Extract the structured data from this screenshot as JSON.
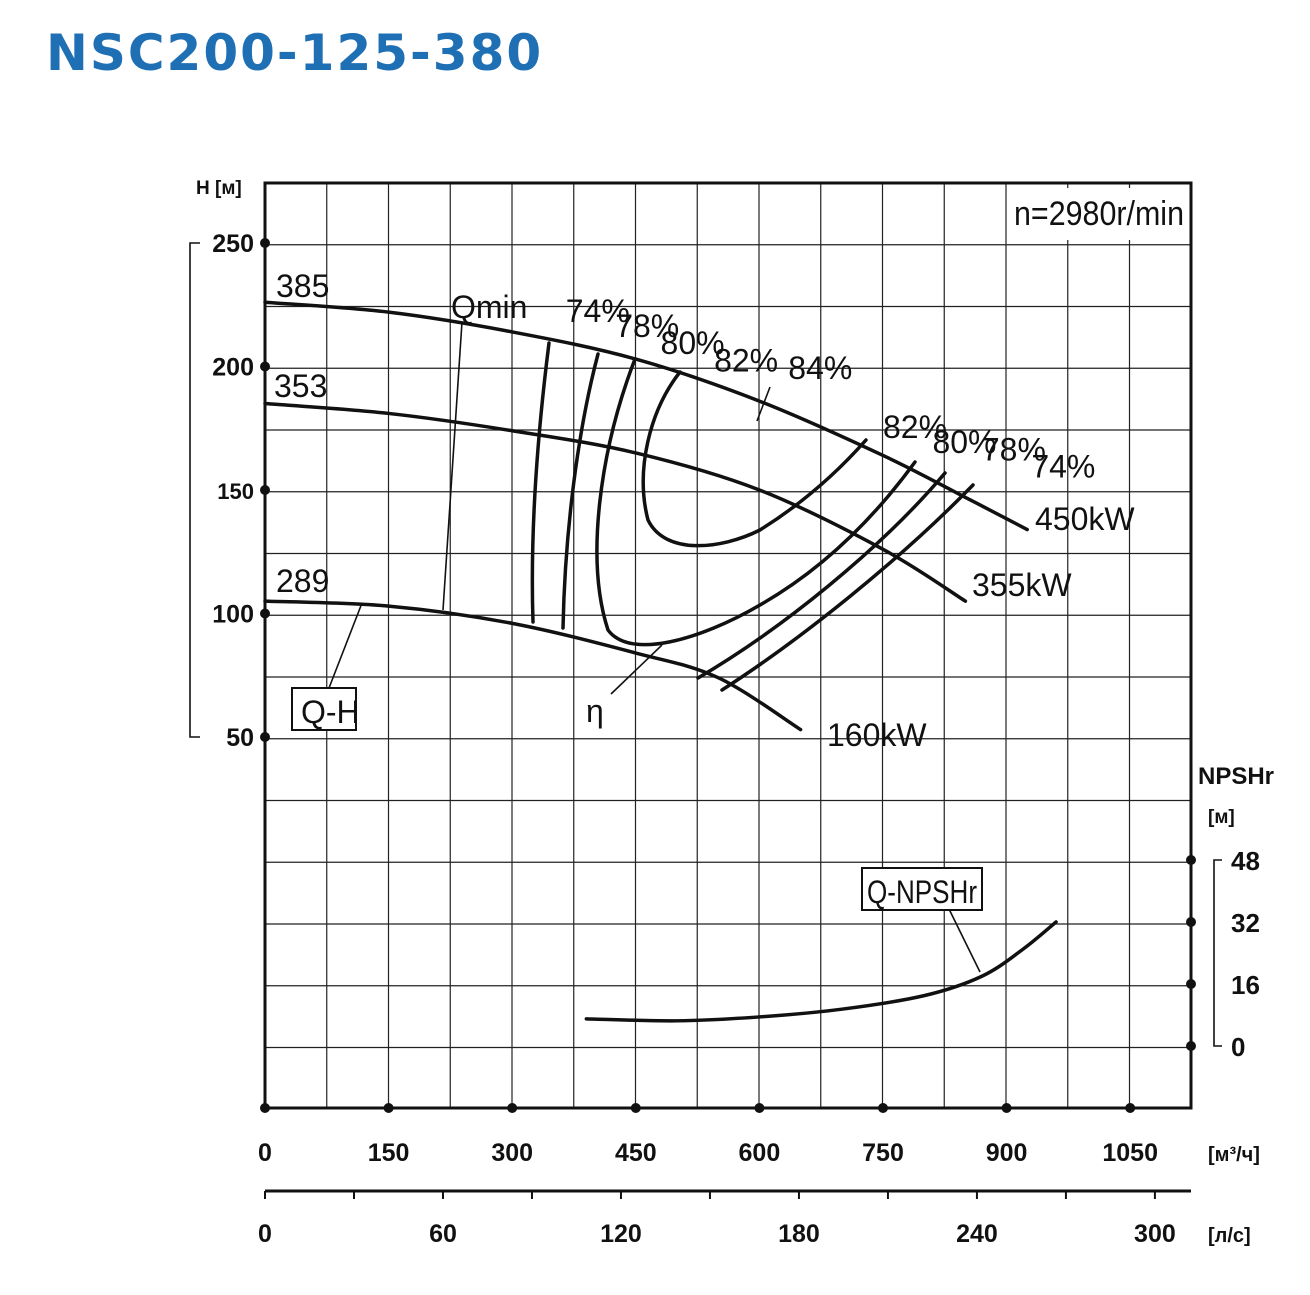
{
  "title": "NSC200-125-380",
  "chart_data": {
    "type": "line",
    "speed_label": "n=2980r/min",
    "y_left": {
      "label": "H [м]",
      "ticks": [
        "250",
        "200",
        "150",
        "100",
        "50"
      ]
    },
    "y_right": {
      "label": "NPSHr",
      "unit": "[м]",
      "ticks": [
        "48",
        "32",
        "16",
        "0"
      ]
    },
    "x_primary": {
      "unit": "[м³/ч]",
      "ticks": [
        "0",
        "150",
        "300",
        "450",
        "600",
        "750",
        "900",
        "1050"
      ]
    },
    "x_secondary": {
      "unit": "[л/с]",
      "ticks": [
        "0",
        "60",
        "120",
        "180",
        "240",
        "300"
      ]
    },
    "impeller_curves": [
      {
        "name": "385",
        "points": [
          [
            0,
            226
          ],
          [
            150,
            222
          ],
          [
            300,
            214
          ],
          [
            450,
            203
          ],
          [
            600,
            186
          ],
          [
            750,
            164
          ],
          [
            850,
            147
          ],
          [
            925,
            134
          ]
        ]
      },
      {
        "name": "353",
        "points": [
          [
            0,
            185
          ],
          [
            150,
            181
          ],
          [
            300,
            174
          ],
          [
            450,
            165
          ],
          [
            600,
            150
          ],
          [
            750,
            126
          ],
          [
            850,
            105
          ]
        ]
      },
      {
        "name": "289",
        "points": [
          [
            0,
            105
          ],
          [
            150,
            103
          ],
          [
            300,
            96
          ],
          [
            450,
            84
          ],
          [
            550,
            74
          ],
          [
            650,
            53
          ]
        ]
      }
    ],
    "efficiency_labels": [
      {
        "text": "74%",
        "q": 365,
        "h": 218
      },
      {
        "text": "78%",
        "q": 425,
        "h": 212
      },
      {
        "text": "80%",
        "q": 480,
        "h": 205
      },
      {
        "text": "82%",
        "q": 545,
        "h": 198
      },
      {
        "text": "84%",
        "q": 635,
        "h": 195
      },
      {
        "text": "82%",
        "q": 750,
        "h": 171
      },
      {
        "text": "80%",
        "q": 810,
        "h": 165
      },
      {
        "text": "78%",
        "q": 870,
        "h": 162
      },
      {
        "text": "74%",
        "q": 930,
        "h": 155
      }
    ],
    "power_labels": [
      "450kW",
      "355kW",
      "160kW"
    ],
    "qmin_label": "Qmin",
    "eta_label": "η",
    "qh_label": "Q-H",
    "npsh_label": "Q-NPSHr",
    "npsh_curve": {
      "points": [
        [
          390,
          7
        ],
        [
          500,
          6.5
        ],
        [
          600,
          7.5
        ],
        [
          700,
          9.5
        ],
        [
          800,
          13
        ],
        [
          870,
          18
        ],
        [
          920,
          25
        ],
        [
          960,
          32
        ]
      ]
    }
  }
}
